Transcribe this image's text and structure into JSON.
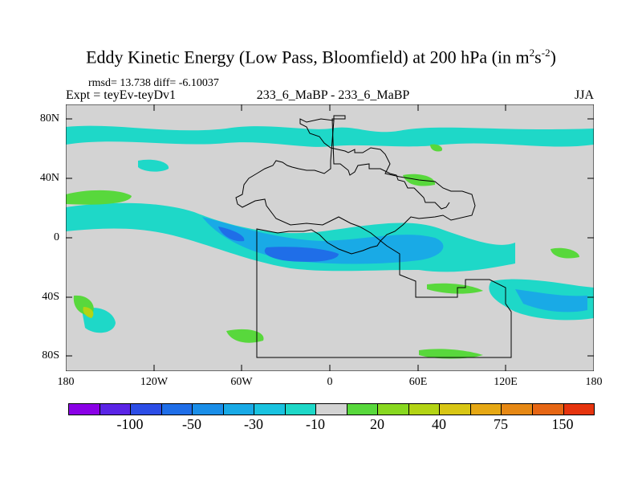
{
  "title": {
    "main": "Eddy Kinetic Energy (Low Pass, Bloomfield) at 200 hPa (in m",
    "sup1": "2",
    "mid": "s",
    "sup2": "-2",
    "end": ")"
  },
  "stats": "rmsd= 13.738 diff= -6.10037",
  "expt": "Expt = teyEv-teyDv1",
  "center_label": "233_6_MaBP - 233_6_MaBP",
  "season": "JJA",
  "map": {
    "y_ticks": [
      "80N",
      "40N",
      "0",
      "40S",
      "80S"
    ],
    "x_ticks": [
      "180",
      "120W",
      "60W",
      "0",
      "60E",
      "120E",
      "180"
    ],
    "lat_range": [
      -90,
      90
    ],
    "lon_range": [
      -180,
      180
    ]
  },
  "colorbar": {
    "colors": [
      "#8a00e6",
      "#5a24e6",
      "#2c4de6",
      "#1f6ee8",
      "#1a8ee8",
      "#19aae6",
      "#1ac3e0",
      "#1ed8c8",
      "#d3d3d3",
      "#58d83c",
      "#88d820",
      "#b3d414",
      "#d8c614",
      "#e6a814",
      "#e68814",
      "#e66614",
      "#e6340e"
    ],
    "labels": [
      "-100",
      "-50",
      "-30",
      "-10",
      "20",
      "40",
      "75",
      "150"
    ]
  }
}
